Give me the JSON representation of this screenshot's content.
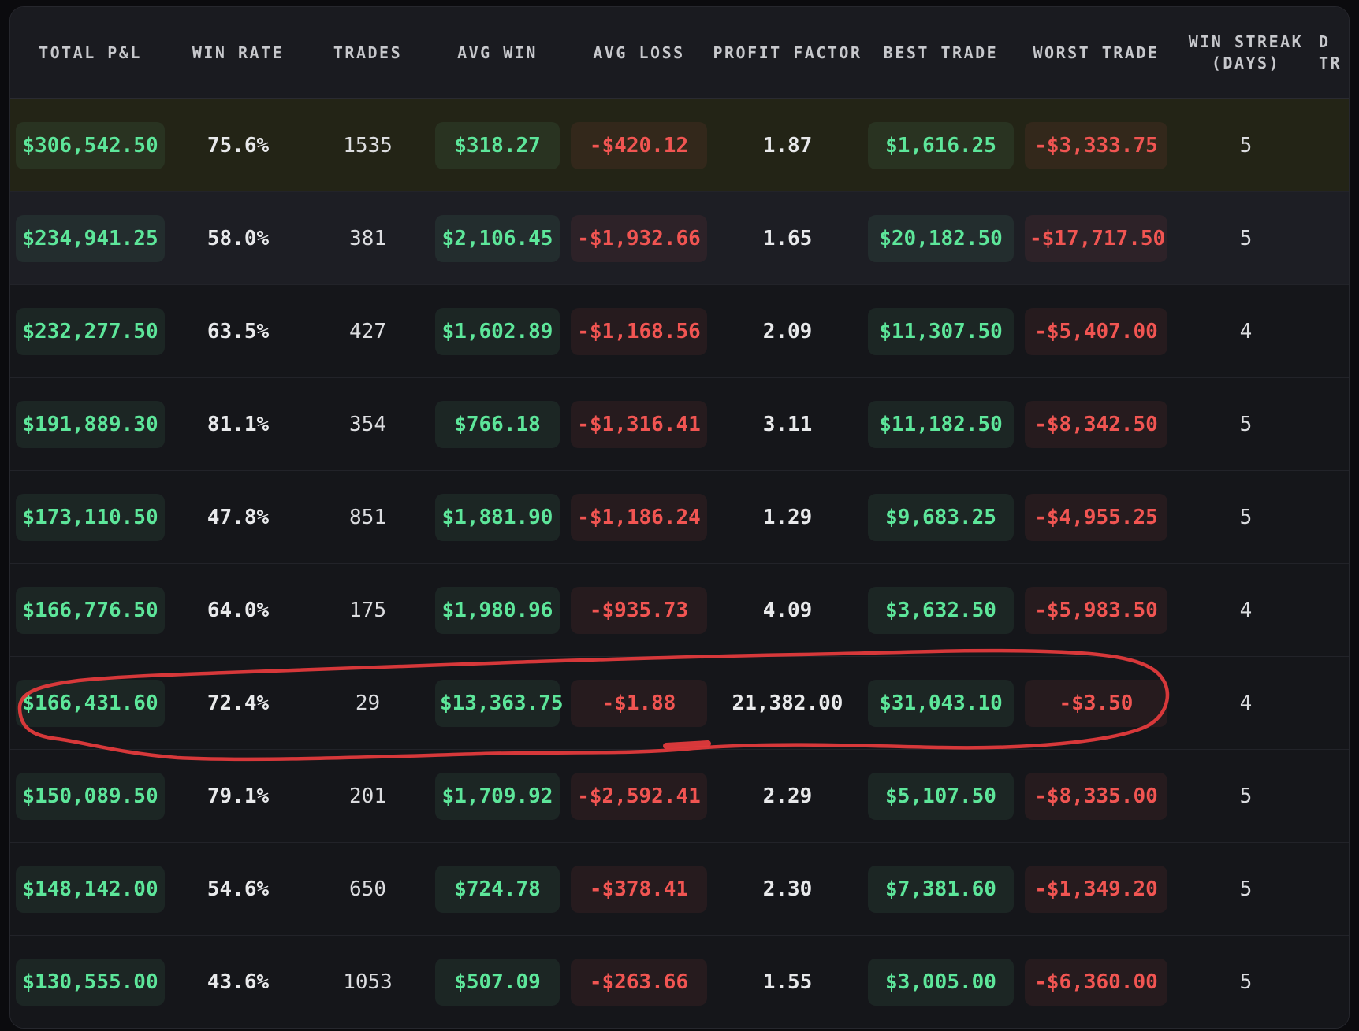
{
  "table": {
    "columns": [
      {
        "id": "total_pl",
        "label": "TOTAL P&L",
        "label2": "",
        "type": "pill"
      },
      {
        "id": "win_rate",
        "label": "WIN RATE",
        "label2": "",
        "type": "text",
        "bold": true
      },
      {
        "id": "trades",
        "label": "TRADES",
        "label2": "",
        "type": "text",
        "bold": false
      },
      {
        "id": "avg_win",
        "label": "AVG WIN",
        "label2": "",
        "type": "pill"
      },
      {
        "id": "avg_loss",
        "label": "AVG LOSS",
        "label2": "",
        "type": "pill"
      },
      {
        "id": "profit_factor",
        "label": "PROFIT FACTOR",
        "label2": "",
        "type": "text",
        "bold": true
      },
      {
        "id": "best_trade",
        "label": "BEST TRADE",
        "label2": "",
        "type": "pill"
      },
      {
        "id": "worst_trade",
        "label": "WORST TRADE",
        "label2": "",
        "type": "pill"
      },
      {
        "id": "win_streak",
        "label": "WIN STREAK",
        "label2": "(DAYS)",
        "type": "text",
        "bold": false
      },
      {
        "id": "extra",
        "label": "D",
        "label2": "TR",
        "type": "text",
        "bold": false,
        "clipped": true
      }
    ],
    "rows": [
      {
        "total_pl": "$306,542.50",
        "win_rate": "75.6%",
        "trades": "1535",
        "avg_win": "$318.27",
        "avg_loss": "-$420.12",
        "profit_factor": "1.87",
        "best_trade": "$1,616.25",
        "worst_trade": "-$3,333.75",
        "win_streak": "5",
        "extra": "",
        "state": "highlighted"
      },
      {
        "total_pl": "$234,941.25",
        "win_rate": "58.0%",
        "trades": "381",
        "avg_win": "$2,106.45",
        "avg_loss": "-$1,932.66",
        "profit_factor": "1.65",
        "best_trade": "$20,182.50",
        "worst_trade": "-$17,717.50",
        "win_streak": "5",
        "extra": "",
        "state": "alt"
      },
      {
        "total_pl": "$232,277.50",
        "win_rate": "63.5%",
        "trades": "427",
        "avg_win": "$1,602.89",
        "avg_loss": "-$1,168.56",
        "profit_factor": "2.09",
        "best_trade": "$11,307.50",
        "worst_trade": "-$5,407.00",
        "win_streak": "4",
        "extra": "",
        "state": ""
      },
      {
        "total_pl": "$191,889.30",
        "win_rate": "81.1%",
        "trades": "354",
        "avg_win": "$766.18",
        "avg_loss": "-$1,316.41",
        "profit_factor": "3.11",
        "best_trade": "$11,182.50",
        "worst_trade": "-$8,342.50",
        "win_streak": "5",
        "extra": "",
        "state": ""
      },
      {
        "total_pl": "$173,110.50",
        "win_rate": "47.8%",
        "trades": "851",
        "avg_win": "$1,881.90",
        "avg_loss": "-$1,186.24",
        "profit_factor": "1.29",
        "best_trade": "$9,683.25",
        "worst_trade": "-$4,955.25",
        "win_streak": "5",
        "extra": "",
        "state": ""
      },
      {
        "total_pl": "$166,776.50",
        "win_rate": "64.0%",
        "trades": "175",
        "avg_win": "$1,980.96",
        "avg_loss": "-$935.73",
        "profit_factor": "4.09",
        "best_trade": "$3,632.50",
        "worst_trade": "-$5,983.50",
        "win_streak": "4",
        "extra": "",
        "state": ""
      },
      {
        "total_pl": "$166,431.60",
        "win_rate": "72.4%",
        "trades": "29",
        "avg_win": "$13,363.75",
        "avg_loss": "-$1.88",
        "profit_factor": "21,382.00",
        "best_trade": "$31,043.10",
        "worst_trade": "-$3.50",
        "win_streak": "4",
        "extra": "",
        "state": "",
        "circled": true
      },
      {
        "total_pl": "$150,089.50",
        "win_rate": "79.1%",
        "trades": "201",
        "avg_win": "$1,709.92",
        "avg_loss": "-$2,592.41",
        "profit_factor": "2.29",
        "best_trade": "$5,107.50",
        "worst_trade": "-$8,335.00",
        "win_streak": "5",
        "extra": "",
        "state": ""
      },
      {
        "total_pl": "$148,142.00",
        "win_rate": "54.6%",
        "trades": "650",
        "avg_win": "$724.78",
        "avg_loss": "-$378.41",
        "profit_factor": "2.30",
        "best_trade": "$7,381.60",
        "worst_trade": "-$1,349.20",
        "win_streak": "5",
        "extra": "",
        "state": ""
      },
      {
        "total_pl": "$130,555.00",
        "win_rate": "43.6%",
        "trades": "1053",
        "avg_win": "$507.09",
        "avg_loss": "-$263.66",
        "profit_factor": "1.55",
        "best_trade": "$3,005.00",
        "worst_trade": "-$6,360.00",
        "win_streak": "5",
        "extra": "",
        "state": ""
      }
    ]
  },
  "annotation": {
    "type": "hand-drawn-circle",
    "circled_row_index": 6,
    "color": "#e23a3c"
  },
  "colors": {
    "positive_text": "#5de69a",
    "negative_text": "#f15552",
    "neutral_text": "#e8e9eb",
    "header_text": "#c7c8cc",
    "card_background": "#141519",
    "header_background": "#1a1b20",
    "highlighted_row_background": "#232416",
    "page_background": "#0b0b0e"
  }
}
